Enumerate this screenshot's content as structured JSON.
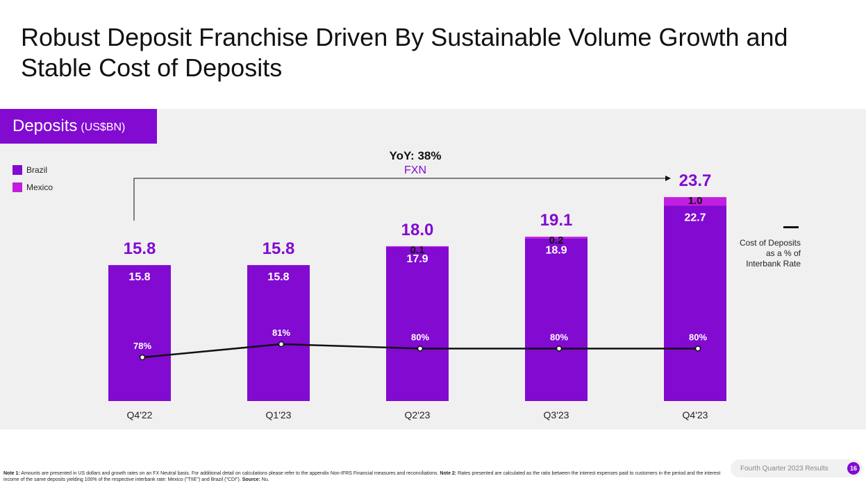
{
  "title": "Robust Deposit Franchise Driven By Sustainable Volume Growth and Stable Cost of Deposits",
  "section": {
    "label": "Deposits",
    "unit": "(US$BN)"
  },
  "legend": [
    {
      "name": "Brazil",
      "color": "#820ad1"
    },
    {
      "name": "Mexico",
      "color": "#c21ee0"
    }
  ],
  "yoy": {
    "label": "YoY: 38%",
    "sublabel": "FXN"
  },
  "line_legend": {
    "label": "Cost of Deposits as a % of Interbank Rate"
  },
  "chart_data": {
    "type": "bar",
    "stacked": true,
    "categories": [
      "Q4'22",
      "Q1'23",
      "Q2'23",
      "Q3'23",
      "Q4'23"
    ],
    "series": [
      {
        "name": "Brazil",
        "values": [
          15.8,
          15.8,
          17.9,
          18.9,
          22.7
        ],
        "labels": [
          "15.8",
          "15.8",
          "17.9",
          "18.9",
          "22.7"
        ],
        "color": "#820ad1"
      },
      {
        "name": "Mexico",
        "values": [
          0,
          0,
          0.1,
          0.2,
          1.0
        ],
        "labels": [
          "",
          "",
          "0.1",
          "0.2",
          "1.0"
        ],
        "color": "#c21ee0"
      }
    ],
    "totals": [
      "15.8",
      "15.8",
      "18.0",
      "19.1",
      "23.7"
    ],
    "total_values": [
      15.8,
      15.8,
      18.0,
      19.1,
      23.7
    ],
    "line_series": {
      "name": "Cost of Deposits as a % of Interbank Rate",
      "values": [
        78,
        81,
        80,
        80,
        80
      ],
      "labels": [
        "78%",
        "81%",
        "80%",
        "80%",
        "80%"
      ],
      "color": "#111111"
    },
    "ylim": [
      0,
      26
    ]
  },
  "footnote": {
    "note1_label": "Note 1:",
    "note1_text": "Amounts are presented in US dollars and growth rates on an FX Neutral basis. For additional detail on calculations please refer to the appendix Non-IFRS Financial measures and reconciliations.",
    "note2_label": "Note 2:",
    "note2_text": "Rates presented are calculated as the ratio between the interest expenses paid to customers in the period and the interest income of the same deposits yielding 100% of the respective interbank rate: Mexico (\"TIIE\") and Brazil (\"CDI\").",
    "source_label": "Source:",
    "source_text": "Nu."
  },
  "footer": {
    "label": "Fourth Quarter 2023 Results",
    "page": "16"
  },
  "colors": {
    "brand": "#820ad1",
    "accent": "#c21ee0",
    "panel": "#f0f0f0"
  }
}
